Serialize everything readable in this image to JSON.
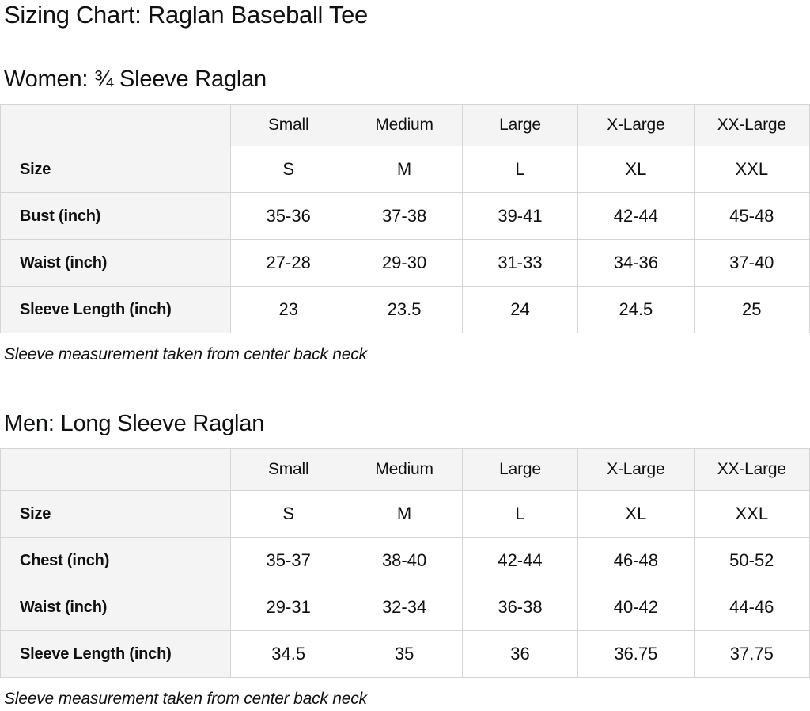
{
  "page_title": "Sizing Chart: Raglan Baseball Tee",
  "colors": {
    "header_cell_bg": "#f4f4f4",
    "table_border": "#d5d5d5",
    "text": "#0f1111"
  },
  "columns": [
    "Small",
    "Medium",
    "Large",
    "X-Large",
    "XX-Large"
  ],
  "sections": [
    {
      "heading": "Women: ¾ Sleeve Raglan",
      "note": "Sleeve measurement taken from center back neck",
      "rows": [
        {
          "label": "Size",
          "values": [
            "S",
            "M",
            "L",
            "XL",
            "XXL"
          ]
        },
        {
          "label": "Bust (inch)",
          "values": [
            "35-36",
            "37-38",
            "39-41",
            "42-44",
            "45-48"
          ]
        },
        {
          "label": "Waist (inch)",
          "values": [
            "27-28",
            "29-30",
            "31-33",
            "34-36",
            "37-40"
          ]
        },
        {
          "label": "Sleeve Length (inch)",
          "values": [
            "23",
            "23.5",
            "24",
            "24.5",
            "25"
          ]
        }
      ]
    },
    {
      "heading": "Men: Long Sleeve Raglan",
      "note": "Sleeve measurement taken from center back neck",
      "rows": [
        {
          "label": "Size",
          "values": [
            "S",
            "M",
            "L",
            "XL",
            "XXL"
          ]
        },
        {
          "label": "Chest (inch)",
          "values": [
            "35-37",
            "38-40",
            "42-44",
            "46-48",
            "50-52"
          ]
        },
        {
          "label": "Waist (inch)",
          "values": [
            "29-31",
            "32-34",
            "36-38",
            "40-42",
            "44-46"
          ]
        },
        {
          "label": "Sleeve Length (inch)",
          "values": [
            "34.5",
            "35",
            "36",
            "36.75",
            "37.75"
          ]
        }
      ]
    }
  ]
}
